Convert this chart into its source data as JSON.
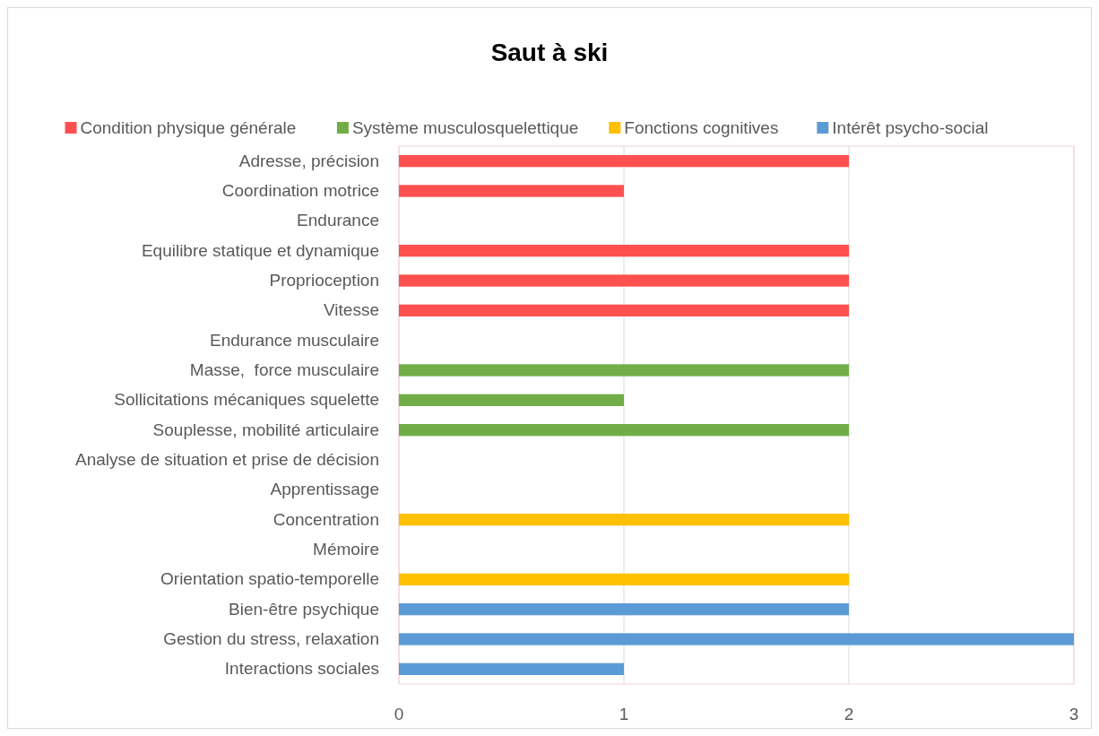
{
  "chart_data": {
    "type": "bar",
    "title": "Saut à ski",
    "orientation": "horizontal",
    "grid": "x",
    "legend": "top",
    "categories": [
      "Adresse, précision",
      "Coordination motrice",
      "Endurance",
      "Equilibre statique et dynamique",
      "Proprioception",
      "Vitesse",
      "Endurance musculaire",
      "Masse,  force musculaire",
      "Sollicitations mécaniques squelette",
      "Souplesse, mobilité articulaire",
      "Analyse de situation et prise de décision",
      "Apprentissage",
      "Concentration",
      "Mémoire",
      "Orientation spatio-temporelle",
      "Bien-être psychique",
      "Gestion du stress, relaxation",
      "Interactions sociales"
    ],
    "series": [
      {
        "name": "Condition physique générale",
        "color": "#ff5050",
        "values": [
          2,
          1,
          0,
          2,
          2,
          2,
          null,
          null,
          null,
          null,
          null,
          null,
          null,
          null,
          null,
          null,
          null,
          null
        ]
      },
      {
        "name": "Système musculosquelettique",
        "color": "#70ad47",
        "values": [
          null,
          null,
          null,
          null,
          null,
          null,
          0,
          2,
          1,
          2,
          null,
          null,
          null,
          null,
          null,
          null,
          null,
          null
        ]
      },
      {
        "name": "Fonctions cognitives",
        "color": "#ffc000",
        "values": [
          null,
          null,
          null,
          null,
          null,
          null,
          null,
          null,
          null,
          null,
          0,
          0,
          2,
          0,
          2,
          null,
          null,
          null
        ]
      },
      {
        "name": "Intérêt psycho-social",
        "color": "#5b9bd5",
        "values": [
          null,
          null,
          null,
          null,
          null,
          null,
          null,
          null,
          null,
          null,
          null,
          null,
          null,
          null,
          null,
          2,
          3,
          1
        ]
      }
    ],
    "xlim": [
      0,
      3
    ],
    "xticks": [
      0,
      1,
      2,
      3
    ]
  }
}
